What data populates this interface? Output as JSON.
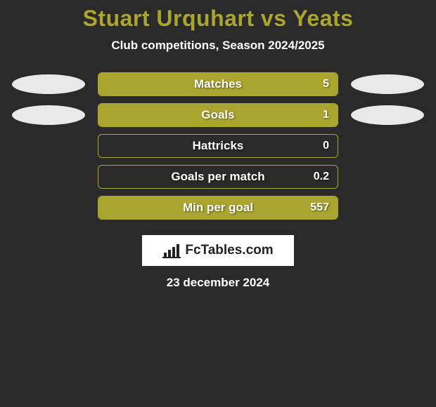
{
  "title_color": "#a9a52f",
  "title": "Stuart Urquhart vs Yeats",
  "subtitle": "Club competitions, Season 2024/2025",
  "ellipse_color": "#e9e9e9",
  "bars": [
    {
      "label": "Matches",
      "value": "5",
      "fill_pct": 100,
      "fill_color": "#a9a52f",
      "border_color": "#a9a52f",
      "show_ellipses": true
    },
    {
      "label": "Goals",
      "value": "1",
      "fill_pct": 100,
      "fill_color": "#a9a52f",
      "border_color": "#a9a52f",
      "show_ellipses": true
    },
    {
      "label": "Hattricks",
      "value": "0",
      "fill_pct": 0,
      "fill_color": "#a9a52f",
      "border_color": "#a9a52f",
      "show_ellipses": false
    },
    {
      "label": "Goals per match",
      "value": "0.2",
      "fill_pct": 0,
      "fill_color": "#a9a52f",
      "border_color": "#a9a52f",
      "show_ellipses": false
    },
    {
      "label": "Min per goal",
      "value": "557",
      "fill_pct": 100,
      "fill_color": "#a9a52f",
      "border_color": "#a9a52f",
      "show_ellipses": false
    }
  ],
  "logo": {
    "text": "FcTables.com",
    "icon_color": "#222222",
    "bg": "#ffffff"
  },
  "date": "23 december 2024",
  "background_color": "#2a2a2a"
}
